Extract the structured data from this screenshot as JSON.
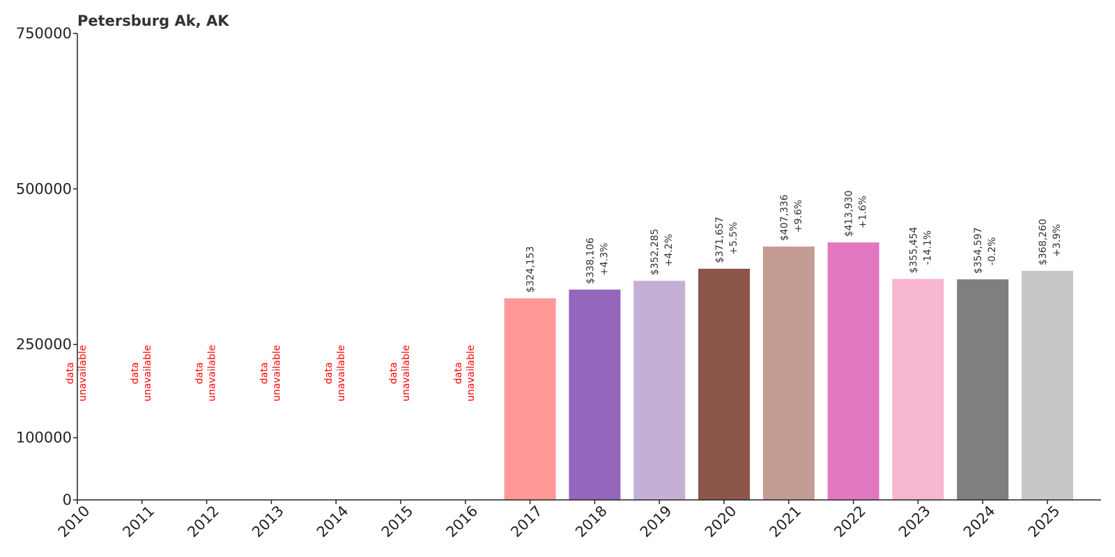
{
  "chart_data": {
    "type": "bar",
    "title": "Petersburg Ak, AK",
    "xlabel": "",
    "ylabel": "",
    "categories": [
      "2010",
      "2011",
      "2012",
      "2013",
      "2014",
      "2015",
      "2016",
      "2017",
      "2018",
      "2019",
      "2020",
      "2021",
      "2022",
      "2023",
      "2024",
      "2025"
    ],
    "values": [
      null,
      null,
      null,
      null,
      null,
      null,
      null,
      324153,
      338106,
      352285,
      371657,
      407336,
      413930,
      355454,
      354597,
      368260
    ],
    "value_labels": [
      "",
      "",
      "",
      "",
      "",
      "",
      "",
      "$324,153",
      "$338,106",
      "$352,285",
      "$371,657",
      "$407,336",
      "$413,930",
      "$355,454",
      "$354,597",
      "$368,260"
    ],
    "change_labels": [
      "",
      "",
      "",
      "",
      "",
      "",
      "",
      "",
      "+4.3%",
      "+4.2%",
      "+5.5%",
      "+9.6%",
      "+1.6%",
      "-14.1%",
      "-0.2%",
      "+3.9%"
    ],
    "unavailable_label": [
      "data",
      "unavailable"
    ],
    "colors": [
      "",
      "",
      "",
      "",
      "",
      "",
      "",
      "#ff9896",
      "#9467bd",
      "#c5b0d5",
      "#8c564b",
      "#c49c94",
      "#e377c2",
      "#f7b6d2",
      "#7f7f7f",
      "#c7c7c7"
    ],
    "y_ticks": [
      0,
      100000,
      250000,
      500000,
      750000
    ],
    "ylim": [
      0,
      750000
    ],
    "grid": false,
    "legend": "none"
  }
}
